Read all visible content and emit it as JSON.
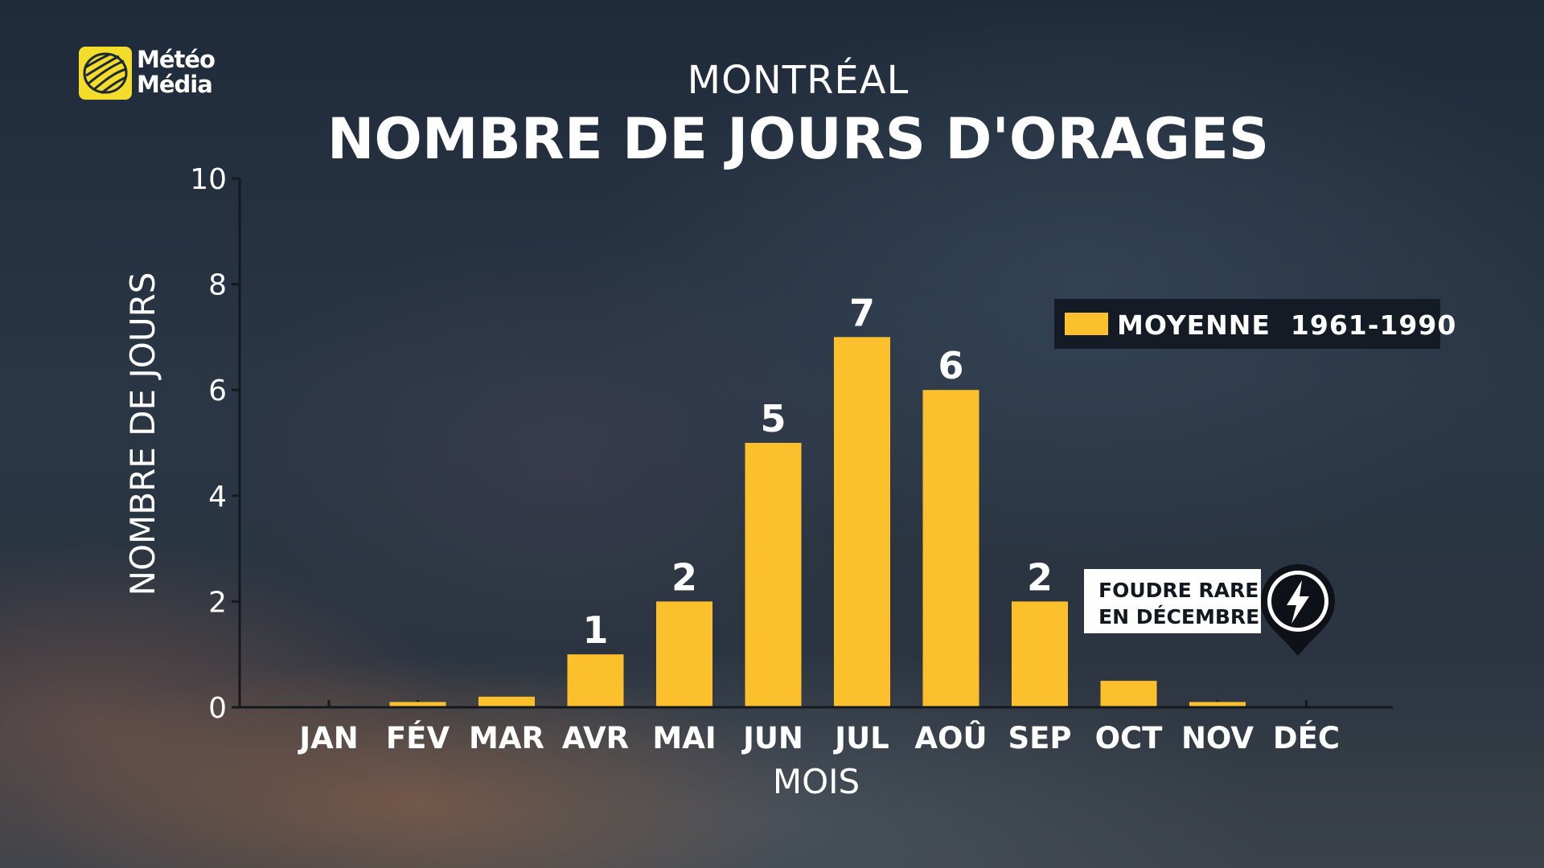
{
  "brand": {
    "logo_line1": "Météo",
    "logo_line2": "Média"
  },
  "header": {
    "subtitle": "MONTRÉAL",
    "title": "NOMBRE DE JOURS D'ORAGES"
  },
  "legend": {
    "label": "MOYENNE  1961-1990"
  },
  "callout": {
    "line1": "FOUDRE RARE",
    "line2": "EN DÉCEMBRE",
    "icon": "lightning-bolt-icon"
  },
  "colors": {
    "bar": "#fcc02d",
    "axis": "#14191f",
    "text": "#ffffff",
    "logo": "#f3dc2a"
  },
  "chart_data": {
    "type": "bar",
    "xlabel": "MOIS",
    "ylabel": "NOMBRE DE JOURS",
    "ylim": [
      0,
      10
    ],
    "yticks": [
      0,
      2,
      4,
      6,
      8,
      10
    ],
    "categories": [
      "JAN",
      "FÉV",
      "MAR",
      "AVR",
      "MAI",
      "JUN",
      "JUL",
      "AOÛ",
      "SEP",
      "OCT",
      "NOV",
      "DÉC"
    ],
    "series": [
      {
        "name": "MOYENNE  1961-1990",
        "values": [
          0,
          0.1,
          0.2,
          1,
          2,
          5,
          7,
          6,
          2,
          0.5,
          0.1,
          0
        ],
        "data_labels": [
          "",
          "",
          "",
          "1",
          "2",
          "5",
          "7",
          "6",
          "2",
          "",
          "",
          ""
        ]
      }
    ],
    "grid": false,
    "legend_position": "top-right"
  }
}
